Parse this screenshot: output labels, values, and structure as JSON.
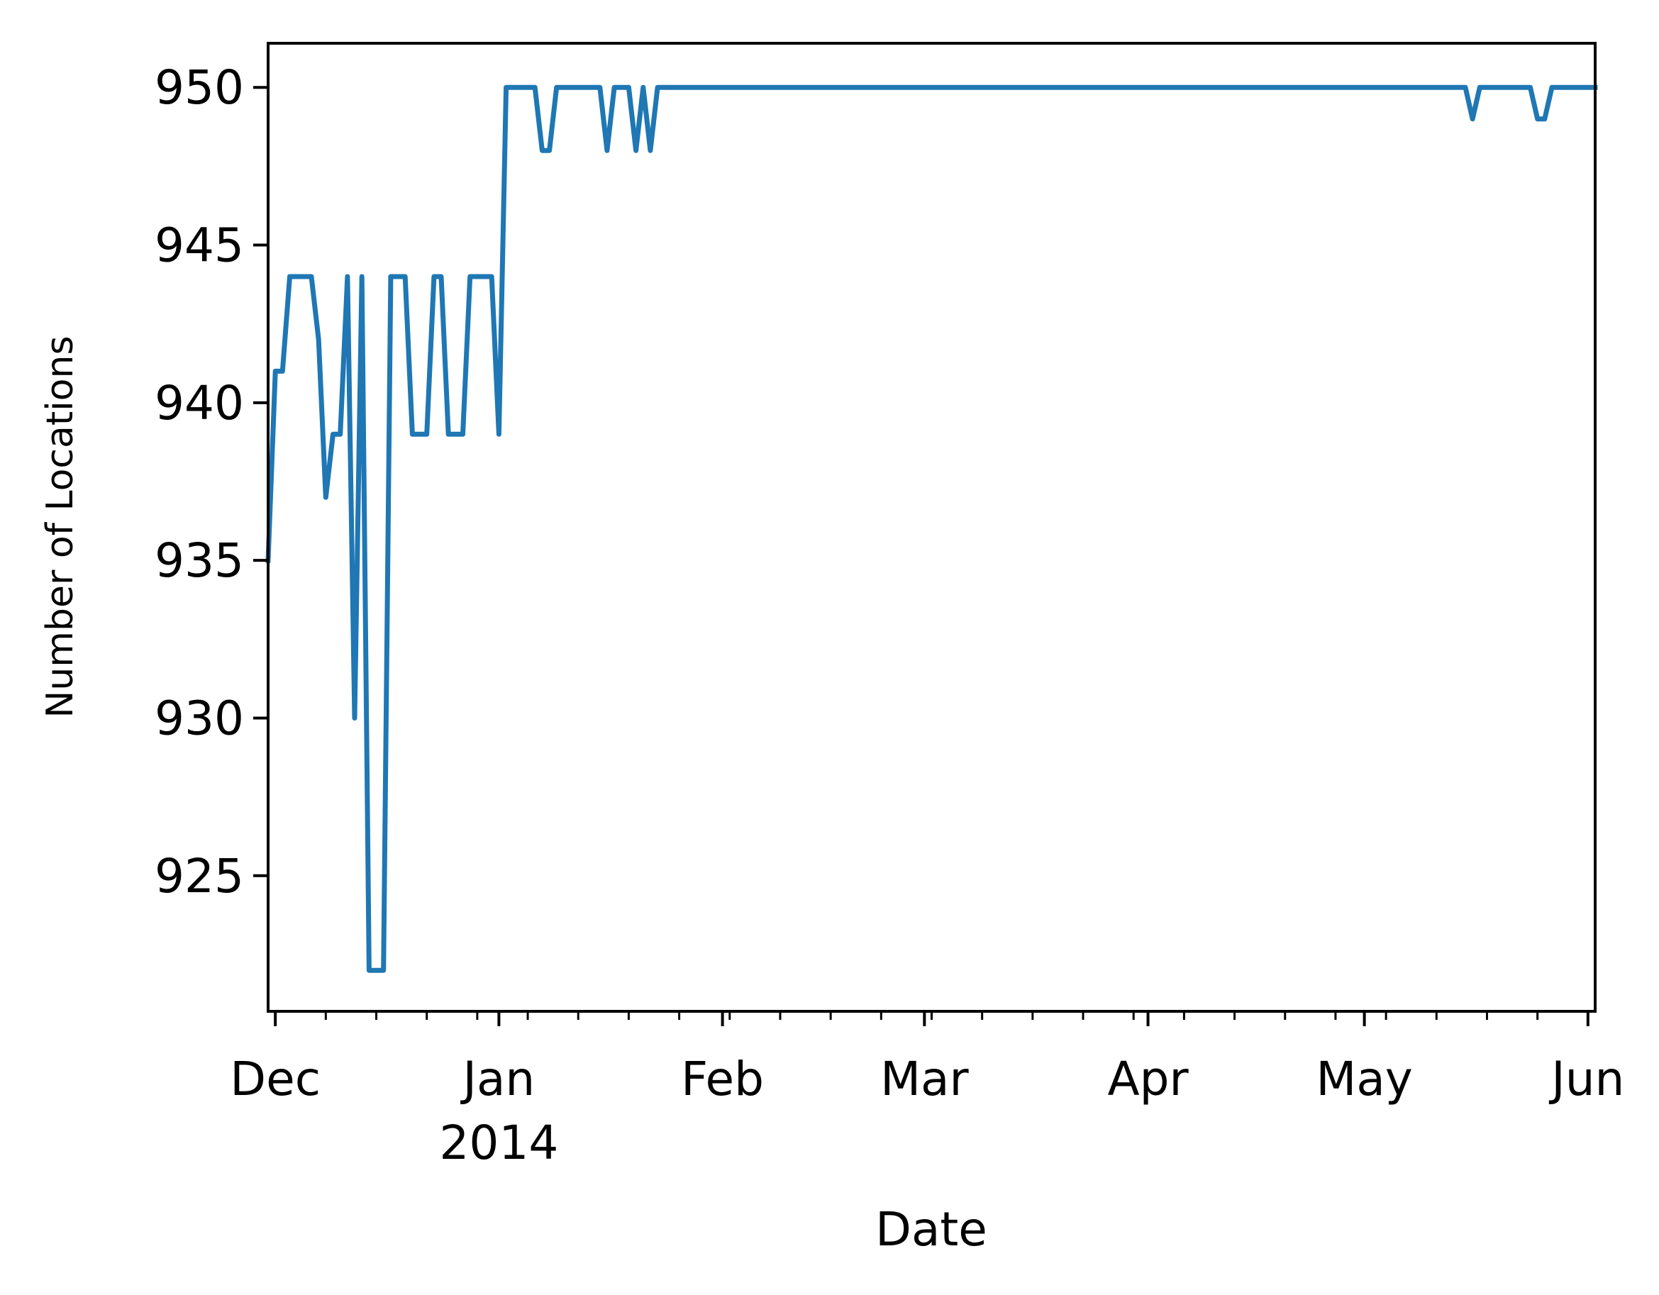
{
  "chart_data": {
    "type": "line",
    "title": "",
    "xlabel": "Date",
    "ylabel": "Number of Locations",
    "ylim": [
      920.7,
      951.4
    ],
    "xlim": [
      "2013-11-30",
      "2014-06-02"
    ],
    "y_ticks": [
      925,
      930,
      935,
      940,
      945,
      950
    ],
    "x_ticks": [
      {
        "date": "2013-12-01",
        "label": "Dec",
        "sublabel": ""
      },
      {
        "date": "2014-01-01",
        "label": "Jan",
        "sublabel": "2014"
      },
      {
        "date": "2014-02-01",
        "label": "Feb",
        "sublabel": ""
      },
      {
        "date": "2014-03-01",
        "label": "Mar",
        "sublabel": ""
      },
      {
        "date": "2014-04-01",
        "label": "Apr",
        "sublabel": ""
      },
      {
        "date": "2014-05-01",
        "label": "May",
        "sublabel": ""
      },
      {
        "date": "2014-06-01",
        "label": "Jun",
        "sublabel": ""
      }
    ],
    "grid": false,
    "legend": "none",
    "series": [
      {
        "color": "#1f77b4",
        "x": [
          "2013-11-30",
          "2013-12-01",
          "2013-12-02",
          "2013-12-03",
          "2013-12-04",
          "2013-12-05",
          "2013-12-06",
          "2013-12-07",
          "2013-12-08",
          "2013-12-09",
          "2013-12-10",
          "2013-12-11",
          "2013-12-12",
          "2013-12-13",
          "2013-12-14",
          "2013-12-15",
          "2013-12-16",
          "2013-12-17",
          "2013-12-18",
          "2013-12-19",
          "2013-12-20",
          "2013-12-21",
          "2013-12-22",
          "2013-12-23",
          "2013-12-24",
          "2013-12-25",
          "2013-12-26",
          "2013-12-27",
          "2013-12-28",
          "2013-12-29",
          "2013-12-30",
          "2013-12-31",
          "2014-01-01",
          "2014-01-02",
          "2014-01-03",
          "2014-01-04",
          "2014-01-05",
          "2014-01-06",
          "2014-01-07",
          "2014-01-08",
          "2014-01-09",
          "2014-01-10",
          "2014-01-11",
          "2014-01-12",
          "2014-01-13",
          "2014-01-14",
          "2014-01-15",
          "2014-01-16",
          "2014-01-17",
          "2014-01-18",
          "2014-01-19",
          "2014-01-20",
          "2014-01-21",
          "2014-01-22",
          "2014-01-23",
          "2014-01-24",
          "2014-05-15",
          "2014-05-16",
          "2014-05-17",
          "2014-05-24",
          "2014-05-25",
          "2014-05-26",
          "2014-05-27",
          "2014-06-02"
        ],
        "values": [
          935,
          941,
          941,
          944,
          944,
          944,
          944,
          942,
          937,
          939,
          939,
          944,
          930,
          944,
          922,
          922,
          922,
          944,
          944,
          944,
          939,
          939,
          939,
          944,
          944,
          939,
          939,
          939,
          944,
          944,
          944,
          944,
          939,
          950,
          950,
          950,
          950,
          950,
          948,
          948,
          950,
          950,
          950,
          950,
          950,
          950,
          950,
          948,
          950,
          950,
          950,
          948,
          950,
          948,
          950,
          950,
          950,
          949,
          950,
          950,
          949,
          949,
          950,
          950
        ]
      }
    ]
  }
}
